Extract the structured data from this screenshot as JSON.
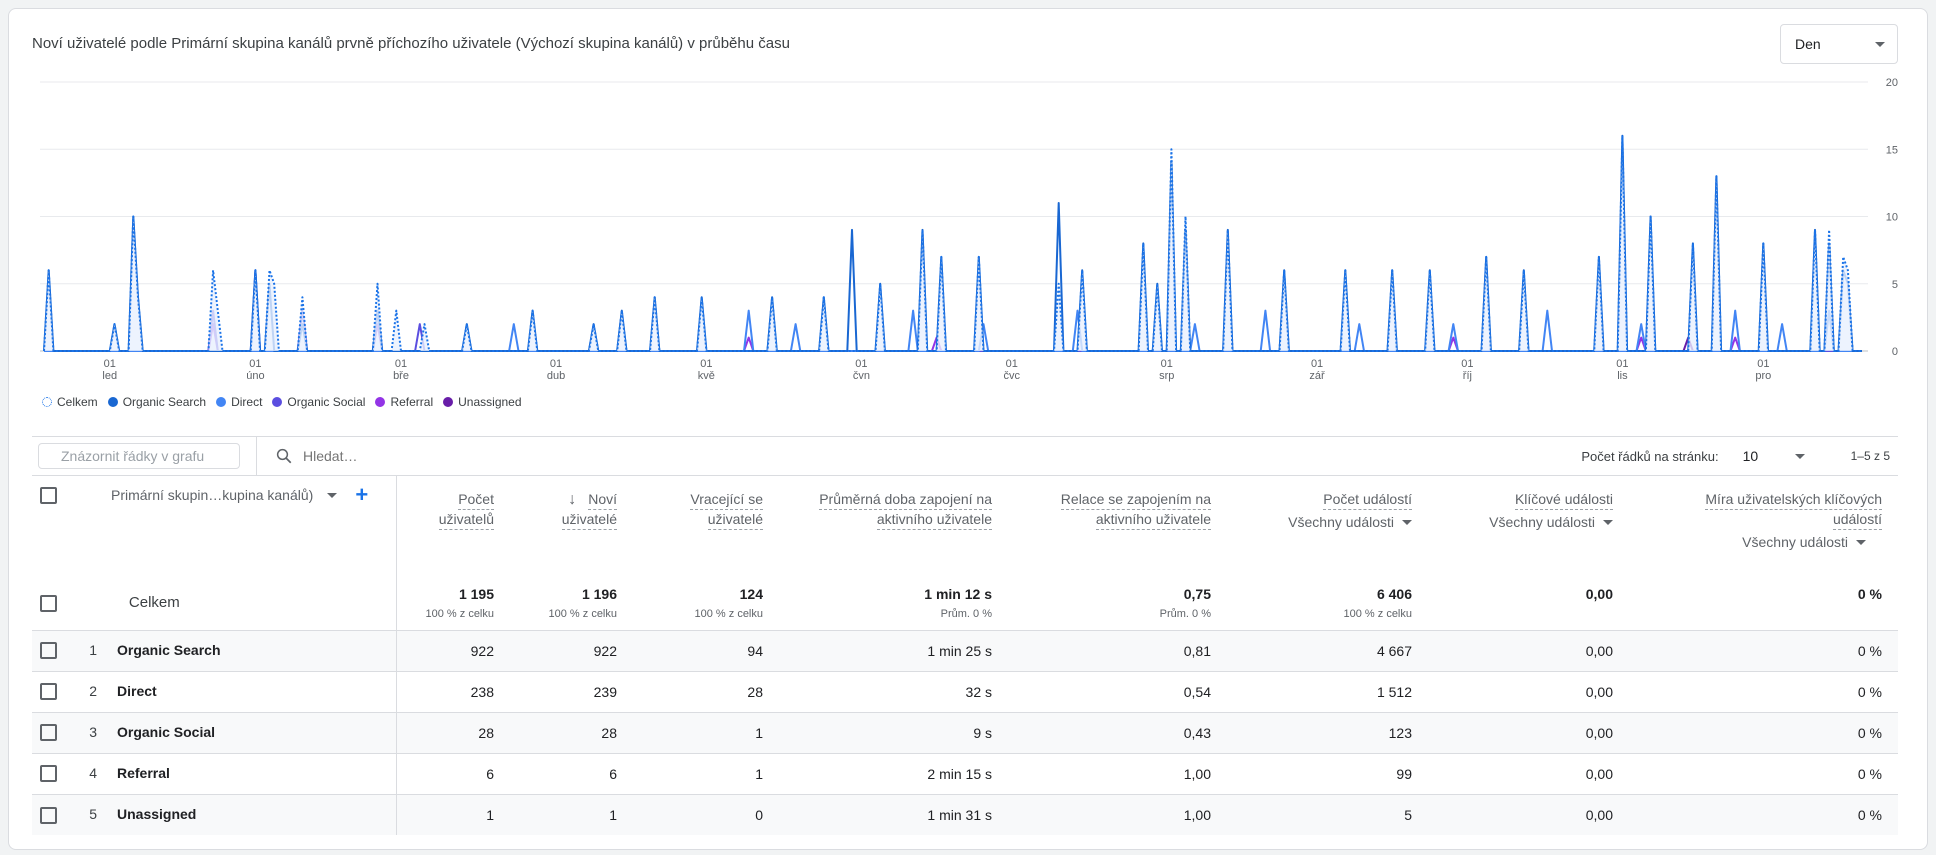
{
  "card": {
    "title": "Noví uživatelé podle Primární skupina kanálů prvně příchozího uživatele (Výchozí skupina kanálů) v průběhu času",
    "period_selector": "Den"
  },
  "chart_data": {
    "type": "line",
    "title": "Noví uživatelé podle Primární skupina kanálů prvně příchozího uživatele (Výchozí skupina kanálů) v průběhu času",
    "y_ticks": [
      "20",
      "15",
      "10",
      "5",
      "0"
    ],
    "ylim": [
      0,
      20
    ],
    "grid": true,
    "x_ticks": [
      {
        "day": "01",
        "month": "led"
      },
      {
        "day": "01",
        "month": "úno"
      },
      {
        "day": "01",
        "month": "bře"
      },
      {
        "day": "01",
        "month": "dub"
      },
      {
        "day": "01",
        "month": "kvě"
      },
      {
        "day": "01",
        "month": "čvn"
      },
      {
        "day": "01",
        "month": "čvc"
      },
      {
        "day": "01",
        "month": "srp"
      },
      {
        "day": "01",
        "month": "zář"
      },
      {
        "day": "01",
        "month": "říj"
      },
      {
        "day": "01",
        "month": "lis"
      },
      {
        "day": "01",
        "month": "pro"
      }
    ],
    "x_tick_day_index": [
      14,
      45,
      76,
      109,
      141,
      174,
      206,
      239,
      271,
      303,
      336,
      366
    ],
    "n_days": 388,
    "series": [
      {
        "name": "Celkem",
        "color": "#1a73e8",
        "style": "dotted",
        "area": true,
        "values_sparse": [
          [
            1,
            6
          ],
          [
            15,
            2
          ],
          [
            19,
            10
          ],
          [
            20,
            4
          ],
          [
            36,
            6
          ],
          [
            37,
            3
          ],
          [
            45,
            6
          ],
          [
            48,
            6
          ],
          [
            49,
            5
          ],
          [
            55,
            4
          ],
          [
            71,
            5
          ],
          [
            75,
            3
          ],
          [
            81,
            2
          ],
          [
            90,
            2
          ],
          [
            104,
            3
          ],
          [
            117,
            2
          ],
          [
            123,
            3
          ],
          [
            130,
            4
          ],
          [
            140,
            4
          ],
          [
            155,
            4
          ],
          [
            166,
            4
          ],
          [
            178,
            5
          ],
          [
            187,
            9
          ],
          [
            191,
            7
          ],
          [
            199,
            7
          ],
          [
            216,
            5
          ],
          [
            221,
            6
          ],
          [
            234,
            8
          ],
          [
            237,
            5
          ],
          [
            240,
            15
          ],
          [
            243,
            10
          ],
          [
            252,
            9
          ],
          [
            264,
            6
          ],
          [
            277,
            6
          ],
          [
            287,
            6
          ],
          [
            295,
            6
          ],
          [
            307,
            7
          ],
          [
            315,
            6
          ],
          [
            331,
            7
          ],
          [
            336,
            16
          ],
          [
            342,
            10
          ],
          [
            351,
            8
          ],
          [
            356,
            13
          ],
          [
            366,
            8
          ],
          [
            377,
            9
          ],
          [
            380,
            9
          ],
          [
            383,
            7
          ],
          [
            384,
            6
          ]
        ]
      },
      {
        "name": "Organic Search",
        "color": "#1967d2",
        "style": "solid",
        "area": false,
        "values_sparse": [
          [
            1,
            6
          ],
          [
            15,
            2
          ],
          [
            19,
            10
          ],
          [
            20,
            4
          ],
          [
            45,
            6
          ],
          [
            48,
            5
          ],
          [
            55,
            2
          ],
          [
            71,
            3
          ],
          [
            90,
            2
          ],
          [
            104,
            3
          ],
          [
            117,
            2
          ],
          [
            123,
            3
          ],
          [
            130,
            4
          ],
          [
            140,
            4
          ],
          [
            155,
            4
          ],
          [
            166,
            4
          ],
          [
            172,
            9
          ],
          [
            178,
            5
          ],
          [
            187,
            9
          ],
          [
            191,
            7
          ],
          [
            199,
            7
          ],
          [
            216,
            11
          ],
          [
            221,
            6
          ],
          [
            234,
            8
          ],
          [
            237,
            5
          ],
          [
            240,
            14
          ],
          [
            243,
            9
          ],
          [
            252,
            9
          ],
          [
            264,
            6
          ],
          [
            277,
            6
          ],
          [
            287,
            6
          ],
          [
            295,
            6
          ],
          [
            307,
            7
          ],
          [
            315,
            6
          ],
          [
            331,
            7
          ],
          [
            336,
            16
          ],
          [
            342,
            10
          ],
          [
            351,
            8
          ],
          [
            356,
            13
          ],
          [
            366,
            8
          ],
          [
            377,
            9
          ],
          [
            380,
            8
          ],
          [
            383,
            6
          ],
          [
            384,
            5
          ]
        ]
      },
      {
        "name": "Direct",
        "color": "#4285f4",
        "style": "solid",
        "area": false,
        "values_sparse": [
          [
            100,
            2
          ],
          [
            150,
            3
          ],
          [
            160,
            2
          ],
          [
            185,
            3
          ],
          [
            200,
            2
          ],
          [
            220,
            3
          ],
          [
            245,
            2
          ],
          [
            260,
            3
          ],
          [
            280,
            2
          ],
          [
            300,
            2
          ],
          [
            320,
            3
          ],
          [
            340,
            2
          ],
          [
            360,
            3
          ],
          [
            370,
            2
          ],
          [
            380,
            3
          ]
        ]
      },
      {
        "name": "Organic Social",
        "color": "#5b4ee0",
        "style": "solid",
        "area": false,
        "values_sparse": [
          [
            36,
            3
          ],
          [
            45,
            6
          ],
          [
            55,
            3
          ],
          [
            71,
            3
          ],
          [
            80,
            2
          ]
        ]
      },
      {
        "name": "Referral",
        "color": "#9334e6",
        "style": "solid",
        "area": false,
        "values_sparse": [
          [
            36,
            2
          ],
          [
            71,
            2
          ],
          [
            150,
            1
          ],
          [
            190,
            1
          ],
          [
            300,
            1
          ],
          [
            340,
            1
          ],
          [
            360,
            1
          ]
        ]
      },
      {
        "name": "Unassigned",
        "color": "#681da8",
        "style": "solid",
        "area": false,
        "values_sparse": [
          [
            350,
            1
          ]
        ]
      }
    ]
  },
  "legend": [
    {
      "label": "Celkem",
      "color": "#1a73e8",
      "dashed": true
    },
    {
      "label": "Organic Search",
      "color": "#1967d2",
      "dashed": false
    },
    {
      "label": "Direct",
      "color": "#4285f4",
      "dashed": false
    },
    {
      "label": "Organic Social",
      "color": "#5b4ee0",
      "dashed": false
    },
    {
      "label": "Referral",
      "color": "#9334e6",
      "dashed": false
    },
    {
      "label": "Unassigned",
      "color": "#681da8",
      "dashed": false
    }
  ],
  "toolbar": {
    "plot_rows_label": "Znázornit řádky v grafu",
    "search_placeholder": "Hledat…",
    "rows_per_page_label": "Počet řádků na stránku:",
    "rows_per_page_value": "10",
    "pager": "1–5 z 5"
  },
  "table": {
    "dimension_header": "Primární skupin…kupina kanálů)",
    "columns": [
      {
        "l1": "Počet",
        "l2": "uživatelů",
        "sub": ""
      },
      {
        "l1": "Noví",
        "l2": "uživatelé",
        "sub": ""
      },
      {
        "l1": "Vracející se",
        "l2": "uživatelé",
        "sub": ""
      },
      {
        "l1": "Průměrná doba zapojení na",
        "l2": "aktivního uživatele",
        "sub": ""
      },
      {
        "l1": "Relace se zapojením na",
        "l2": "aktivního uživatele",
        "sub": ""
      },
      {
        "l1": "Počet událostí",
        "l2": "",
        "sub": "Všechny události"
      },
      {
        "l1": "Klíčové události",
        "l2": "",
        "sub": "Všechny události"
      },
      {
        "l1": "Míra uživatelských klíčových",
        "l2": "událostí",
        "sub": "Všechny události"
      }
    ],
    "total": {
      "label": "Celkem",
      "values": [
        "1 195",
        "1 196",
        "124",
        "1 min 12 s",
        "0,75",
        "6 406",
        "0,00",
        "0 %"
      ],
      "subs": [
        "100 % z celku",
        "100 % z celku",
        "100 % z celku",
        "Prům. 0 %",
        "Prům. 0 %",
        "100 % z celku",
        "",
        ""
      ]
    },
    "rows": [
      {
        "num": "1",
        "name": "Organic Search",
        "values": [
          "922",
          "922",
          "94",
          "1 min 25 s",
          "0,81",
          "4 667",
          "0,00",
          "0 %"
        ]
      },
      {
        "num": "2",
        "name": "Direct",
        "values": [
          "238",
          "239",
          "28",
          "32 s",
          "0,54",
          "1 512",
          "0,00",
          "0 %"
        ]
      },
      {
        "num": "3",
        "name": "Organic Social",
        "values": [
          "28",
          "28",
          "1",
          "9 s",
          "0,43",
          "123",
          "0,00",
          "0 %"
        ]
      },
      {
        "num": "4",
        "name": "Referral",
        "values": [
          "6",
          "6",
          "1",
          "2 min 15 s",
          "1,00",
          "99",
          "0,00",
          "0 %"
        ]
      },
      {
        "num": "5",
        "name": "Unassigned",
        "values": [
          "1",
          "1",
          "0",
          "1 min 31 s",
          "1,00",
          "5",
          "0,00",
          "0 %"
        ]
      }
    ]
  }
}
